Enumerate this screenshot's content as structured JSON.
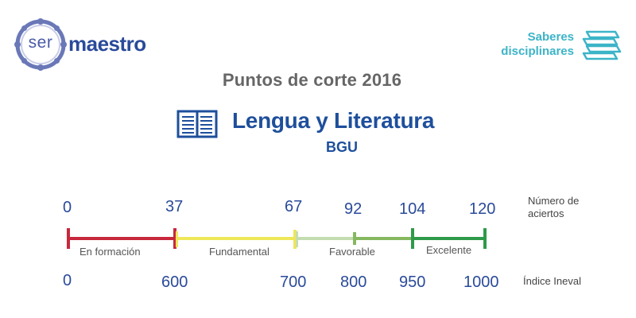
{
  "logo": {
    "ser": "ser",
    "maestro": "maestro"
  },
  "header": {
    "saberes_line1": "Saberes",
    "saberes_line2": "disciplinares"
  },
  "title": "Puntos de corte  2016",
  "subject": "Lengua y Literatura",
  "level": "BGU",
  "scale": {
    "hits_label_line1": "Número de",
    "hits_label_line2": "aciertos",
    "index_label": "Índice Ineval",
    "hits": [
      "0",
      "37",
      "67",
      "92",
      "104",
      "120"
    ],
    "index": [
      "0",
      "600",
      "700",
      "800",
      "950",
      "1000"
    ],
    "bands": [
      {
        "label": "En formación",
        "color": "#c8283c"
      },
      {
        "label": "Fundamental",
        "color": "#eee75a"
      },
      {
        "label": "Favorable",
        "color": "#c4dcb0"
      },
      {
        "label": "Excelente",
        "color": "#2e9a4a"
      }
    ]
  },
  "colors": {
    "title_blue": "#1e4f9c",
    "accent_teal": "#3cb4c8",
    "gray_title": "#666666"
  }
}
